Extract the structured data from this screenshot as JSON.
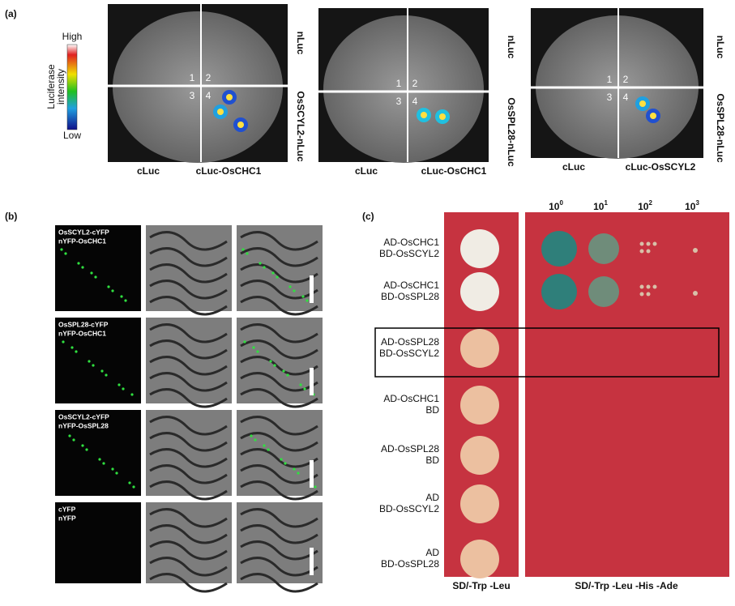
{
  "panel_a": {
    "label": "(a)",
    "colorbar": {
      "title": [
        "Luciferase",
        "intensity"
      ],
      "high": "High",
      "low": "Low"
    },
    "leaves": [
      {
        "bottom_left": "cLuc",
        "bottom_right": "cLuc-OsCHC1",
        "right_top": "nLuc",
        "right_bottom": "OsSCYL2-nLuc",
        "quadrants": [
          "1",
          "2",
          "3",
          "4"
        ]
      },
      {
        "bottom_left": "cLuc",
        "bottom_right": "cLuc-OsCHC1",
        "right_top": "nLuc",
        "right_bottom": "OsSPL28-nLuc",
        "quadrants": [
          "1",
          "2",
          "3",
          "4"
        ]
      },
      {
        "bottom_left": "cLuc",
        "bottom_right": "cLuc-OsSCYL2",
        "right_top": "nLuc",
        "right_bottom": "OsSPL28-nLuc",
        "quadrants": [
          "1",
          "2",
          "3",
          "4"
        ]
      }
    ]
  },
  "panel_b": {
    "label": "(b)",
    "rows": [
      [
        "OsSCYL2-cYFP",
        "nYFP-OsCHC1"
      ],
      [
        "OsSPL28-cYFP",
        "nYFP-OsCHC1"
      ],
      [
        "OsSCYL2-cYFP",
        "nYFP-OsSPL28"
      ],
      [
        "cYFP",
        "nYFP"
      ]
    ]
  },
  "panel_c": {
    "label": "(c)",
    "dilutions": [
      {
        "base": "10",
        "exp": "0"
      },
      {
        "base": "10",
        "exp": "1"
      },
      {
        "base": "10",
        "exp": "2"
      },
      {
        "base": "10",
        "exp": "3"
      }
    ],
    "rows": [
      [
        "AD-OsCHC1",
        "BD-OsSCYL2"
      ],
      [
        "AD-OsCHC1",
        "BD-OsSPL28"
      ],
      [
        "AD-OsSPL28",
        "BD-OsSCYL2"
      ],
      [
        "AD-OsCHC1",
        "BD"
      ],
      [
        "AD-OsSPL28",
        "BD"
      ],
      [
        "AD",
        "BD-OsSCYL2"
      ],
      [
        "AD",
        "BD-OsSPL28"
      ]
    ],
    "plate_labels": [
      "SD/-Trp -Leu",
      "SD/-Trp -Leu -His -Ade"
    ]
  }
}
